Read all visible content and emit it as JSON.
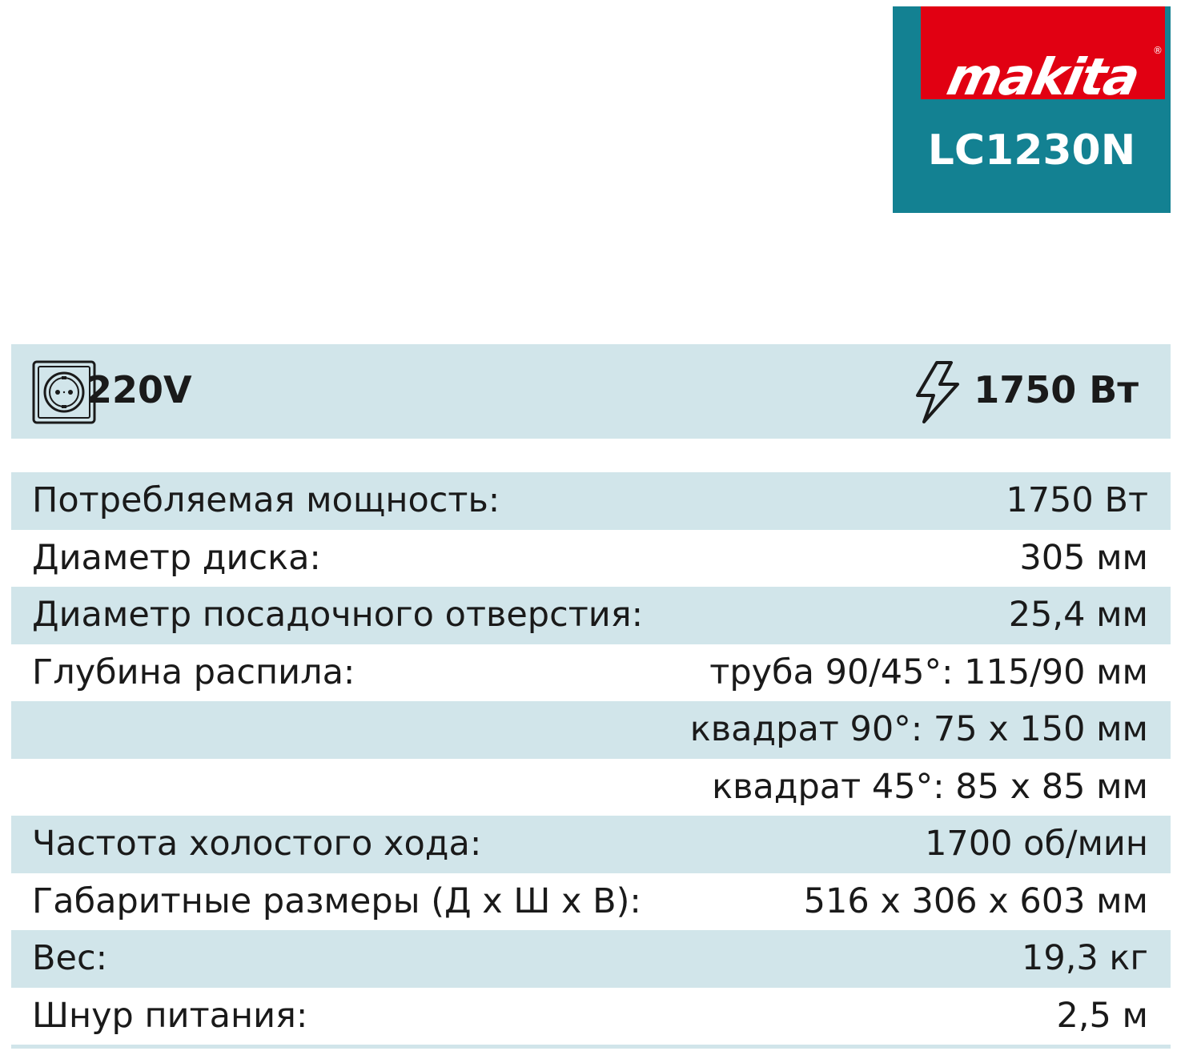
{
  "logo": {
    "brand": "makita",
    "registered": "®",
    "model": "LC1230N",
    "colors": {
      "teal": "#138192",
      "red": "#e10012"
    }
  },
  "banner": {
    "voltage": "220V",
    "voltage_icon": "power-socket-icon",
    "power": "1750 Вт",
    "power_icon": "lightning-bolt-icon"
  },
  "specs": [
    {
      "label": "Потребляемая мощность:",
      "value": "1750 Вт"
    },
    {
      "label": "Диаметр диска:",
      "value": "305 мм"
    },
    {
      "label": "Диаметр посадочного отверстия:",
      "value": "25,4 мм"
    },
    {
      "label": "Глубина распила:",
      "value": "труба 90/45°: 115/90 мм"
    },
    {
      "label": "",
      "value": "квадрат 90°: 75 x 150 мм"
    },
    {
      "label": "",
      "value": "квадрат 45°: 85 x 85 мм"
    },
    {
      "label": "Частота холостого хода:",
      "value": "1700 об/мин"
    },
    {
      "label": "Габаритные размеры (Д х Ш х В):",
      "value": "516 x 306 x 603 мм"
    },
    {
      "label": "Вес:",
      "value": "19,3 кг"
    },
    {
      "label": "Шнур питания:",
      "value": "2,5 м"
    }
  ]
}
